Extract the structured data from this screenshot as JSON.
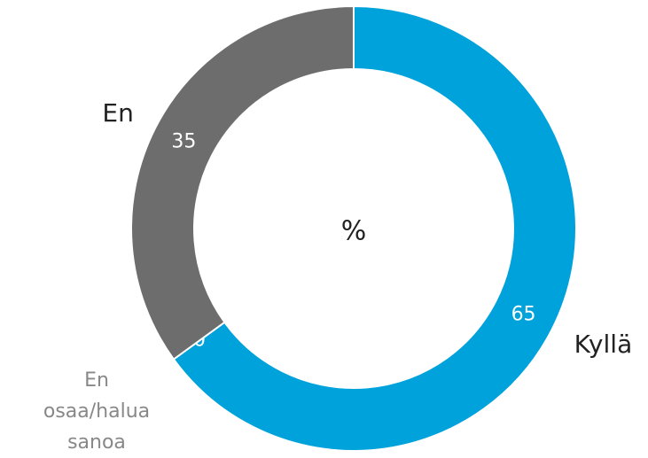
{
  "chart_data": {
    "type": "donut",
    "center_label": "%",
    "categories": [
      "Kyllä",
      "En osaa/halua sanoa",
      "En"
    ],
    "values": [
      65,
      0,
      35
    ],
    "colors": [
      "#00a2db",
      "#b0b0b0",
      "#6d6d6d"
    ]
  }
}
